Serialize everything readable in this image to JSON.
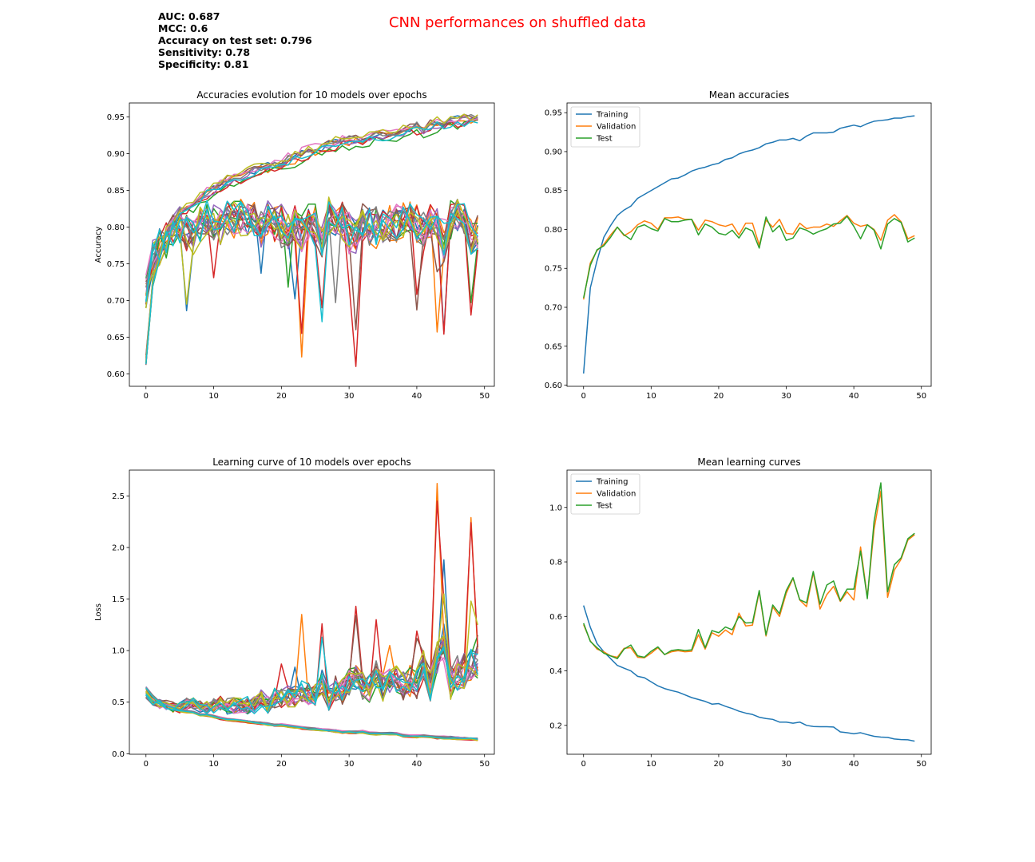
{
  "suptitle": "CNN performances on shuffled data",
  "stats": [
    "AUC: 0.687",
    "MCC: 0.6",
    "Accuracy on test set: 0.796",
    "Sensitivity: 0.78",
    "Specificity: 0.81"
  ],
  "chart_data": [
    {
      "id": "acc_models",
      "type": "line",
      "title": "Accuracies evolution for 10 models over epochs",
      "xlabel": "",
      "ylabel": "Accuracy",
      "xlim": [
        -2.45,
        51.45
      ],
      "ylim": [
        0.583,
        0.969
      ],
      "xticks": [
        0,
        10,
        20,
        30,
        40,
        50
      ],
      "yticks": [
        0.6,
        0.65,
        0.7,
        0.75,
        0.8,
        0.85,
        0.9,
        0.95
      ],
      "ytick_decimals": 2,
      "grid": false,
      "legend": null,
      "n_models": 10,
      "colors": [
        "#1f77b4",
        "#ff7f0e",
        "#2ca02c",
        "#d62728",
        "#9467bd",
        "#8c564b",
        "#e377c2",
        "#7f7f7f",
        "#bcbd22",
        "#17becf"
      ],
      "train_mean": [
        0.615,
        0.725,
        0.76,
        0.79,
        0.805,
        0.818,
        0.825,
        0.83,
        0.84,
        0.845,
        0.85,
        0.855,
        0.86,
        0.865,
        0.866,
        0.87,
        0.875,
        0.878,
        0.88,
        0.883,
        0.885,
        0.89,
        0.892,
        0.897,
        0.9,
        0.902,
        0.905,
        0.91,
        0.912,
        0.915,
        0.915,
        0.917,
        0.914,
        0.92,
        0.924,
        0.924,
        0.924,
        0.925,
        0.93,
        0.932,
        0.934,
        0.932,
        0.936,
        0.939,
        0.94,
        0.941,
        0.943,
        0.943,
        0.945,
        0.946
      ],
      "val_mean": [
        0.71,
        0.757,
        0.773,
        0.781,
        0.793,
        0.803,
        0.792,
        0.797,
        0.806,
        0.811,
        0.808,
        0.8,
        0.815,
        0.815,
        0.816,
        0.813,
        0.813,
        0.799,
        0.812,
        0.81,
        0.806,
        0.804,
        0.807,
        0.793,
        0.808,
        0.808,
        0.78,
        0.812,
        0.803,
        0.813,
        0.795,
        0.794,
        0.808,
        0.801,
        0.803,
        0.803,
        0.807,
        0.804,
        0.811,
        0.818,
        0.808,
        0.804,
        0.806,
        0.8,
        0.786,
        0.812,
        0.819,
        0.81,
        0.788,
        0.792
      ],
      "test_mean": [
        0.712,
        0.754,
        0.774,
        0.779,
        0.79,
        0.803,
        0.793,
        0.787,
        0.803,
        0.806,
        0.801,
        0.798,
        0.814,
        0.81,
        0.81,
        0.812,
        0.813,
        0.793,
        0.807,
        0.803,
        0.795,
        0.793,
        0.799,
        0.789,
        0.802,
        0.798,
        0.776,
        0.816,
        0.797,
        0.805,
        0.786,
        0.789,
        0.802,
        0.799,
        0.794,
        0.798,
        0.801,
        0.807,
        0.808,
        0.817,
        0.804,
        0.788,
        0.806,
        0.799,
        0.775,
        0.807,
        0.814,
        0.809,
        0.784,
        0.789
      ],
      "dips": [
        {
          "model": 3,
          "epoch": 23,
          "value": 0.655
        },
        {
          "model": 1,
          "epoch": 23,
          "value": 0.623
        },
        {
          "model": 3,
          "epoch": 31,
          "value": 0.61
        },
        {
          "model": 3,
          "epoch": 30,
          "value": 0.722
        },
        {
          "model": 5,
          "epoch": 31,
          "value": 0.66
        },
        {
          "model": 9,
          "epoch": 26,
          "value": 0.671
        },
        {
          "model": 7,
          "epoch": 28,
          "value": 0.697
        },
        {
          "model": 3,
          "epoch": 26,
          "value": 0.69
        },
        {
          "model": 3,
          "epoch": 44,
          "value": 0.654
        },
        {
          "model": 1,
          "epoch": 43,
          "value": 0.657
        },
        {
          "model": 5,
          "epoch": 43,
          "value": 0.739
        },
        {
          "model": 0,
          "epoch": 44,
          "value": 0.657
        },
        {
          "model": 5,
          "epoch": 40,
          "value": 0.687
        },
        {
          "model": 3,
          "epoch": 40,
          "value": 0.708
        },
        {
          "model": 3,
          "epoch": 48,
          "value": 0.68
        },
        {
          "model": 2,
          "epoch": 48,
          "value": 0.697
        },
        {
          "model": 3,
          "epoch": 10,
          "value": 0.731
        },
        {
          "model": 0,
          "epoch": 6,
          "value": 0.686
        },
        {
          "model": 8,
          "epoch": 6,
          "value": 0.695
        },
        {
          "model": 0,
          "epoch": 17,
          "value": 0.737
        },
        {
          "model": 2,
          "epoch": 21,
          "value": 0.718
        },
        {
          "model": 0,
          "epoch": 22,
          "value": 0.702
        }
      ]
    },
    {
      "id": "acc_mean",
      "type": "line",
      "title": "Mean accuracies",
      "xlabel": "",
      "ylabel": "",
      "xlim": [
        -2.45,
        51.45
      ],
      "ylim": [
        0.5985,
        0.9625
      ],
      "xticks": [
        0,
        10,
        20,
        30,
        40,
        50
      ],
      "yticks": [
        0.6,
        0.65,
        0.7,
        0.75,
        0.8,
        0.85,
        0.9,
        0.95
      ],
      "ytick_decimals": 2,
      "grid": false,
      "legend": "top-left",
      "x": "0..49",
      "series": [
        {
          "name": "Training",
          "color": "#1f77b4",
          "ref": "acc_models.train_mean"
        },
        {
          "name": "Validation",
          "color": "#ff7f0e",
          "ref": "acc_models.val_mean"
        },
        {
          "name": "Test",
          "color": "#2ca02c",
          "ref": "acc_models.test_mean"
        }
      ]
    },
    {
      "id": "loss_models",
      "type": "line",
      "title": "Learning curve of 10 models over epochs",
      "xlabel": "",
      "ylabel": "Loss",
      "xlim": [
        -2.45,
        51.45
      ],
      "ylim": [
        -0.005,
        2.75
      ],
      "xticks": [
        0,
        10,
        20,
        30,
        40,
        50
      ],
      "yticks": [
        0.0,
        0.5,
        1.0,
        1.5,
        2.0,
        2.5
      ],
      "ytick_decimals": 1,
      "grid": false,
      "legend": null,
      "n_models": 10,
      "colors": [
        "#1f77b4",
        "#ff7f0e",
        "#2ca02c",
        "#d62728",
        "#9467bd",
        "#8c564b",
        "#e377c2",
        "#7f7f7f",
        "#bcbd22",
        "#17becf"
      ],
      "train_mean": [
        0.64,
        0.56,
        0.5,
        0.47,
        0.445,
        0.42,
        0.41,
        0.4,
        0.38,
        0.375,
        0.36,
        0.345,
        0.335,
        0.328,
        0.322,
        0.312,
        0.302,
        0.295,
        0.288,
        0.278,
        0.28,
        0.27,
        0.262,
        0.252,
        0.245,
        0.24,
        0.23,
        0.225,
        0.222,
        0.212,
        0.212,
        0.208,
        0.212,
        0.2,
        0.196,
        0.195,
        0.195,
        0.194,
        0.176,
        0.173,
        0.169,
        0.173,
        0.166,
        0.16,
        0.157,
        0.156,
        0.15,
        0.148,
        0.147,
        0.142
      ],
      "val_mean": [
        0.57,
        0.51,
        0.48,
        0.47,
        0.455,
        0.45,
        0.483,
        0.485,
        0.45,
        0.448,
        0.465,
        0.485,
        0.46,
        0.47,
        0.474,
        0.47,
        0.472,
        0.533,
        0.48,
        0.54,
        0.527,
        0.55,
        0.533,
        0.612,
        0.565,
        0.568,
        0.69,
        0.528,
        0.635,
        0.6,
        0.685,
        0.74,
        0.66,
        0.636,
        0.76,
        0.627,
        0.68,
        0.71,
        0.655,
        0.69,
        0.66,
        0.855,
        0.67,
        0.92,
        1.06,
        0.67,
        0.77,
        0.81,
        0.88,
        0.9
      ],
      "test_mean": [
        0.575,
        0.508,
        0.485,
        0.465,
        0.455,
        0.445,
        0.48,
        0.495,
        0.455,
        0.45,
        0.472,
        0.488,
        0.46,
        0.475,
        0.478,
        0.475,
        0.477,
        0.552,
        0.485,
        0.548,
        0.54,
        0.561,
        0.551,
        0.6,
        0.576,
        0.577,
        0.695,
        0.532,
        0.642,
        0.61,
        0.695,
        0.742,
        0.661,
        0.65,
        0.765,
        0.645,
        0.715,
        0.73,
        0.658,
        0.7,
        0.7,
        0.84,
        0.665,
        0.95,
        1.09,
        0.69,
        0.79,
        0.815,
        0.885,
        0.905
      ],
      "spikes": [
        {
          "model": 1,
          "epoch": 43,
          "value": 2.62
        },
        {
          "model": 3,
          "epoch": 43,
          "value": 2.45
        },
        {
          "model": 1,
          "epoch": 48,
          "value": 2.29
        },
        {
          "model": 3,
          "epoch": 48,
          "value": 2.24
        },
        {
          "model": 0,
          "epoch": 44,
          "value": 1.88
        },
        {
          "model": 8,
          "epoch": 48,
          "value": 1.48
        },
        {
          "model": 3,
          "epoch": 31,
          "value": 1.43
        },
        {
          "model": 5,
          "epoch": 31,
          "value": 1.34
        },
        {
          "model": 1,
          "epoch": 23,
          "value": 1.35
        },
        {
          "model": 3,
          "epoch": 26,
          "value": 1.26
        },
        {
          "model": 3,
          "epoch": 34,
          "value": 1.3
        },
        {
          "model": 9,
          "epoch": 26,
          "value": 1.13
        },
        {
          "model": 3,
          "epoch": 40,
          "value": 1.19
        },
        {
          "model": 8,
          "epoch": 44,
          "value": 1.55
        },
        {
          "model": 3,
          "epoch": 44,
          "value": 1.49
        },
        {
          "model": 5,
          "epoch": 40,
          "value": 1.12
        },
        {
          "model": 3,
          "epoch": 20,
          "value": 0.87
        },
        {
          "model": 0,
          "epoch": 22,
          "value": 0.84
        },
        {
          "model": 1,
          "epoch": 36,
          "value": 1.05
        },
        {
          "model": 2,
          "epoch": 49,
          "value": 1.15
        },
        {
          "model": 8,
          "epoch": 49,
          "value": 1.25
        }
      ]
    },
    {
      "id": "loss_mean",
      "type": "line",
      "title": "Mean learning curves",
      "xlabel": "",
      "ylabel": "",
      "xlim": [
        -2.45,
        51.45
      ],
      "ylim": [
        0.094,
        1.137
      ],
      "xticks": [
        0,
        10,
        20,
        30,
        40,
        50
      ],
      "yticks": [
        0.2,
        0.4,
        0.6,
        0.8,
        1.0
      ],
      "ytick_decimals": 1,
      "grid": false,
      "legend": "top-left",
      "x": "0..49",
      "series": [
        {
          "name": "Training",
          "color": "#1f77b4",
          "ref": "loss_models.train_mean"
        },
        {
          "name": "Validation",
          "color": "#ff7f0e",
          "ref": "loss_models.val_mean"
        },
        {
          "name": "Test",
          "color": "#2ca02c",
          "ref": "loss_models.test_mean"
        }
      ]
    }
  ]
}
